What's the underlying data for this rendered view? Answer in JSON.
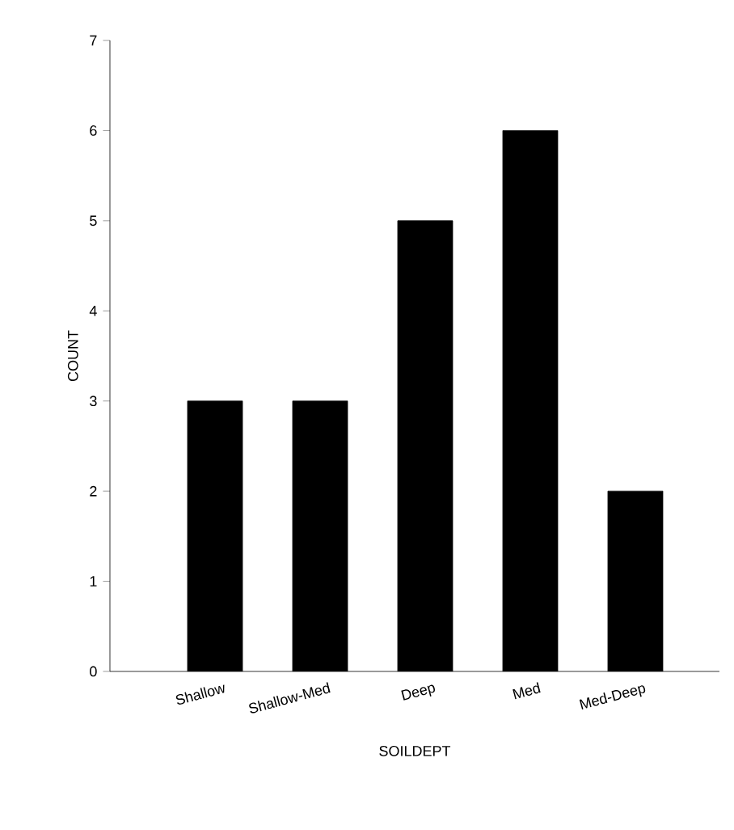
{
  "chart_data": {
    "type": "bar",
    "xlabel": "SOILDEPT",
    "ylabel": "COUNT",
    "categories": [
      "Shallow",
      "Shallow-Med",
      "Deep",
      "Med",
      "Med-Deep"
    ],
    "values": [
      3,
      3,
      5,
      6,
      2
    ],
    "color": "#000000",
    "ylim": [
      0,
      7
    ],
    "yticks": [
      0,
      1,
      2,
      3,
      4,
      5,
      6,
      7
    ],
    "grid": false
  }
}
